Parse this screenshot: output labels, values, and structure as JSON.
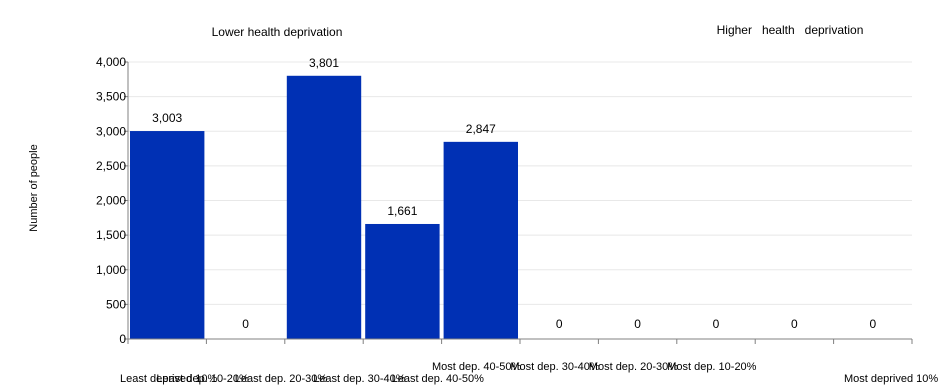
{
  "chart_data": {
    "type": "bar",
    "title": "",
    "xlabel": "",
    "ylabel": "Number of people",
    "annotation_left": "Lower health deprivation",
    "annotation_right": "Higher   health   deprivation",
    "categories": [
      "Least deprived 10%",
      "Least dep. 10-20%",
      "Least dep. 20-30%",
      "Least dep. 30-40%",
      "Least dep. 40-50%",
      "Most dep. 40-50%",
      "Most dep. 30-40%",
      "Most dep. 20-30%",
      "Most dep. 10-20%",
      "Most deprived 10%"
    ],
    "values": [
      3003,
      0,
      3801,
      1661,
      2847,
      0,
      0,
      0,
      0,
      0
    ],
    "value_labels": [
      "3,003",
      "0",
      "3,801",
      "1,661",
      "2,847",
      "0",
      "0",
      "0",
      "0",
      "0"
    ],
    "ylim": [
      0,
      4000
    ],
    "yticks": [
      0,
      500,
      1000,
      1500,
      2000,
      2500,
      3000,
      3500,
      4000
    ],
    "ytick_labels": [
      "0",
      "500",
      "1,000",
      "1,500",
      "2,000",
      "2,500",
      "3,000",
      "3,500",
      "4,000"
    ],
    "grid": true,
    "bar_color": "#0030b4",
    "grid_color": "#e8e8e8"
  }
}
